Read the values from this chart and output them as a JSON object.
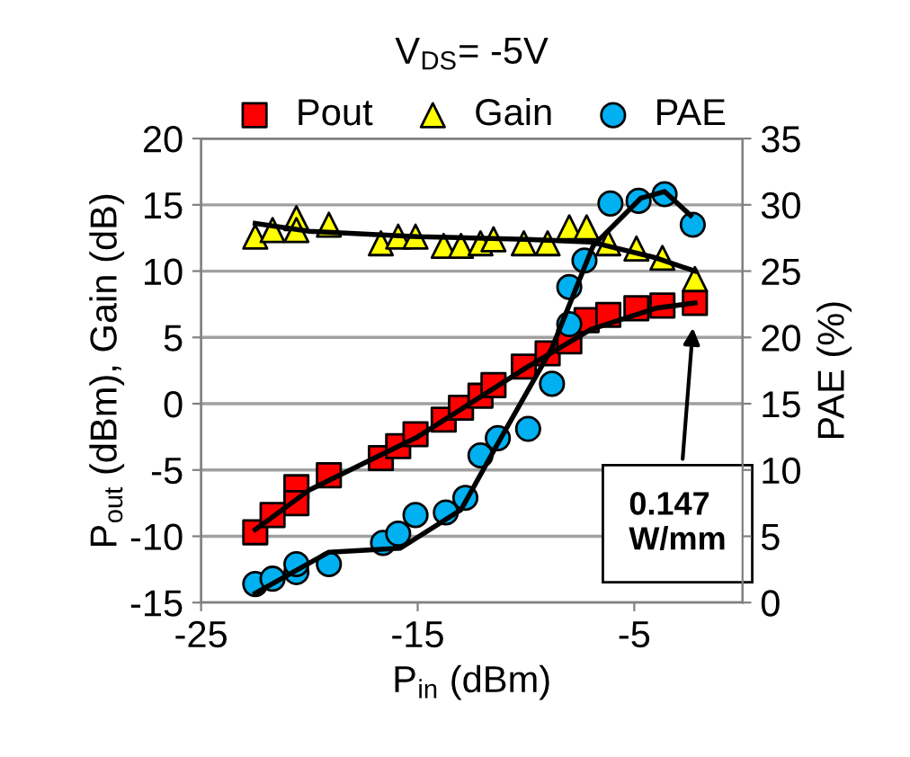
{
  "chart_data": {
    "type": "scatter",
    "title": "V$_{DS}$= -5V",
    "xlabel": "P$_{in}$ (dBm)",
    "ylabel": "P$_{out}$ (dBm), Gain (dB)",
    "y2label": "PAE (%)",
    "xlim": [
      -25,
      0
    ],
    "xticks": [
      -25,
      -15,
      -5
    ],
    "ylim": [
      -15,
      20
    ],
    "yticks": [
      -15,
      -10,
      -5,
      0,
      5,
      10,
      15,
      20
    ],
    "y2lim": [
      0,
      35
    ],
    "y2ticks": [
      0,
      5,
      10,
      15,
      20,
      25,
      30,
      35
    ],
    "grid": "y",
    "legend": "top",
    "annotations": [
      "0.147\nW/mm"
    ],
    "series": [
      {
        "name": "Pout",
        "color": "#ff0000",
        "marker": "square",
        "x": [
          -22.5,
          -21.7,
          -20.6,
          -20.6,
          -19.1,
          -16.7,
          -15.9,
          -15.1,
          -13.8,
          -13.0,
          -12.1,
          -11.5,
          -10.1,
          -9.0,
          -8.0,
          -7.2,
          -6.2,
          -4.9,
          -3.7,
          -2.2
        ],
        "values": [
          -9.7,
          -8.4,
          -6.3,
          -7.5,
          -5.4,
          -4.1,
          -3.2,
          -2.3,
          -1.2,
          -0.3,
          0.6,
          1.4,
          2.8,
          3.8,
          4.7,
          6.3,
          6.7,
          7.2,
          7.4,
          7.6
        ]
      },
      {
        "name": "Gain",
        "color": "#ffff00",
        "marker": "triangle",
        "x": [
          -22.5,
          -21.7,
          -20.6,
          -20.6,
          -19.1,
          -16.7,
          -15.9,
          -15.1,
          -13.8,
          -13.0,
          -12.1,
          -11.5,
          -10.1,
          -9.0,
          -8.0,
          -7.2,
          -6.2,
          -4.9,
          -3.7,
          -2.2
        ],
        "values": [
          12.6,
          13.1,
          14.0,
          13.1,
          13.5,
          12.1,
          12.6,
          12.6,
          11.9,
          11.9,
          12.1,
          12.4,
          12.1,
          12.1,
          13.3,
          13.3,
          12.1,
          11.7,
          11.0,
          9.4
        ]
      },
      {
        "name": "PAE",
        "color": "#00b0f0",
        "marker": "circle",
        "axis": "y2",
        "x": [
          -22.5,
          -21.7,
          -20.6,
          -20.6,
          -19.1,
          -16.6,
          -15.9,
          -15.1,
          -13.7,
          -12.8,
          -12.1,
          -11.3,
          -9.9,
          -8.8,
          -8.0,
          -8.0,
          -7.3,
          -6.1,
          -4.8,
          -3.6,
          -2.3
        ],
        "values": [
          1.4,
          1.8,
          2.3,
          2.9,
          2.9,
          4.5,
          5.2,
          6.6,
          6.8,
          7.9,
          11.1,
          12.4,
          13.1,
          16.5,
          21.0,
          23.8,
          25.8,
          30.1,
          30.3,
          30.8,
          28.5
        ]
      },
      {
        "type": "line",
        "color": "#000000",
        "marker": "none",
        "x": [
          -22.5,
          -20,
          -15,
          -10,
          -7,
          -4,
          -2.2
        ],
        "values": [
          -9.5,
          -6.5,
          -2.5,
          2.7,
          5.6,
          7.2,
          7.6
        ]
      },
      {
        "type": "line",
        "color": "#000000",
        "marker": "none",
        "x": [
          -22.5,
          -20,
          -15,
          -10,
          -7,
          -4,
          -2.2
        ],
        "values": [
          13.6,
          13.0,
          12.6,
          12.4,
          12.2,
          11.0,
          10.0
        ]
      },
      {
        "type": "line",
        "color": "#000000",
        "marker": "none",
        "axis": "y2",
        "x": [
          -22.5,
          -19.1,
          -15.8,
          -13.0,
          -11.3,
          -8.8,
          -6.9,
          -4.7,
          -3.6,
          -2.4
        ],
        "values": [
          0.7,
          3.8,
          4.1,
          7.0,
          12.0,
          19.2,
          26.9,
          30.5,
          31.0,
          29.2
        ]
      }
    ]
  }
}
